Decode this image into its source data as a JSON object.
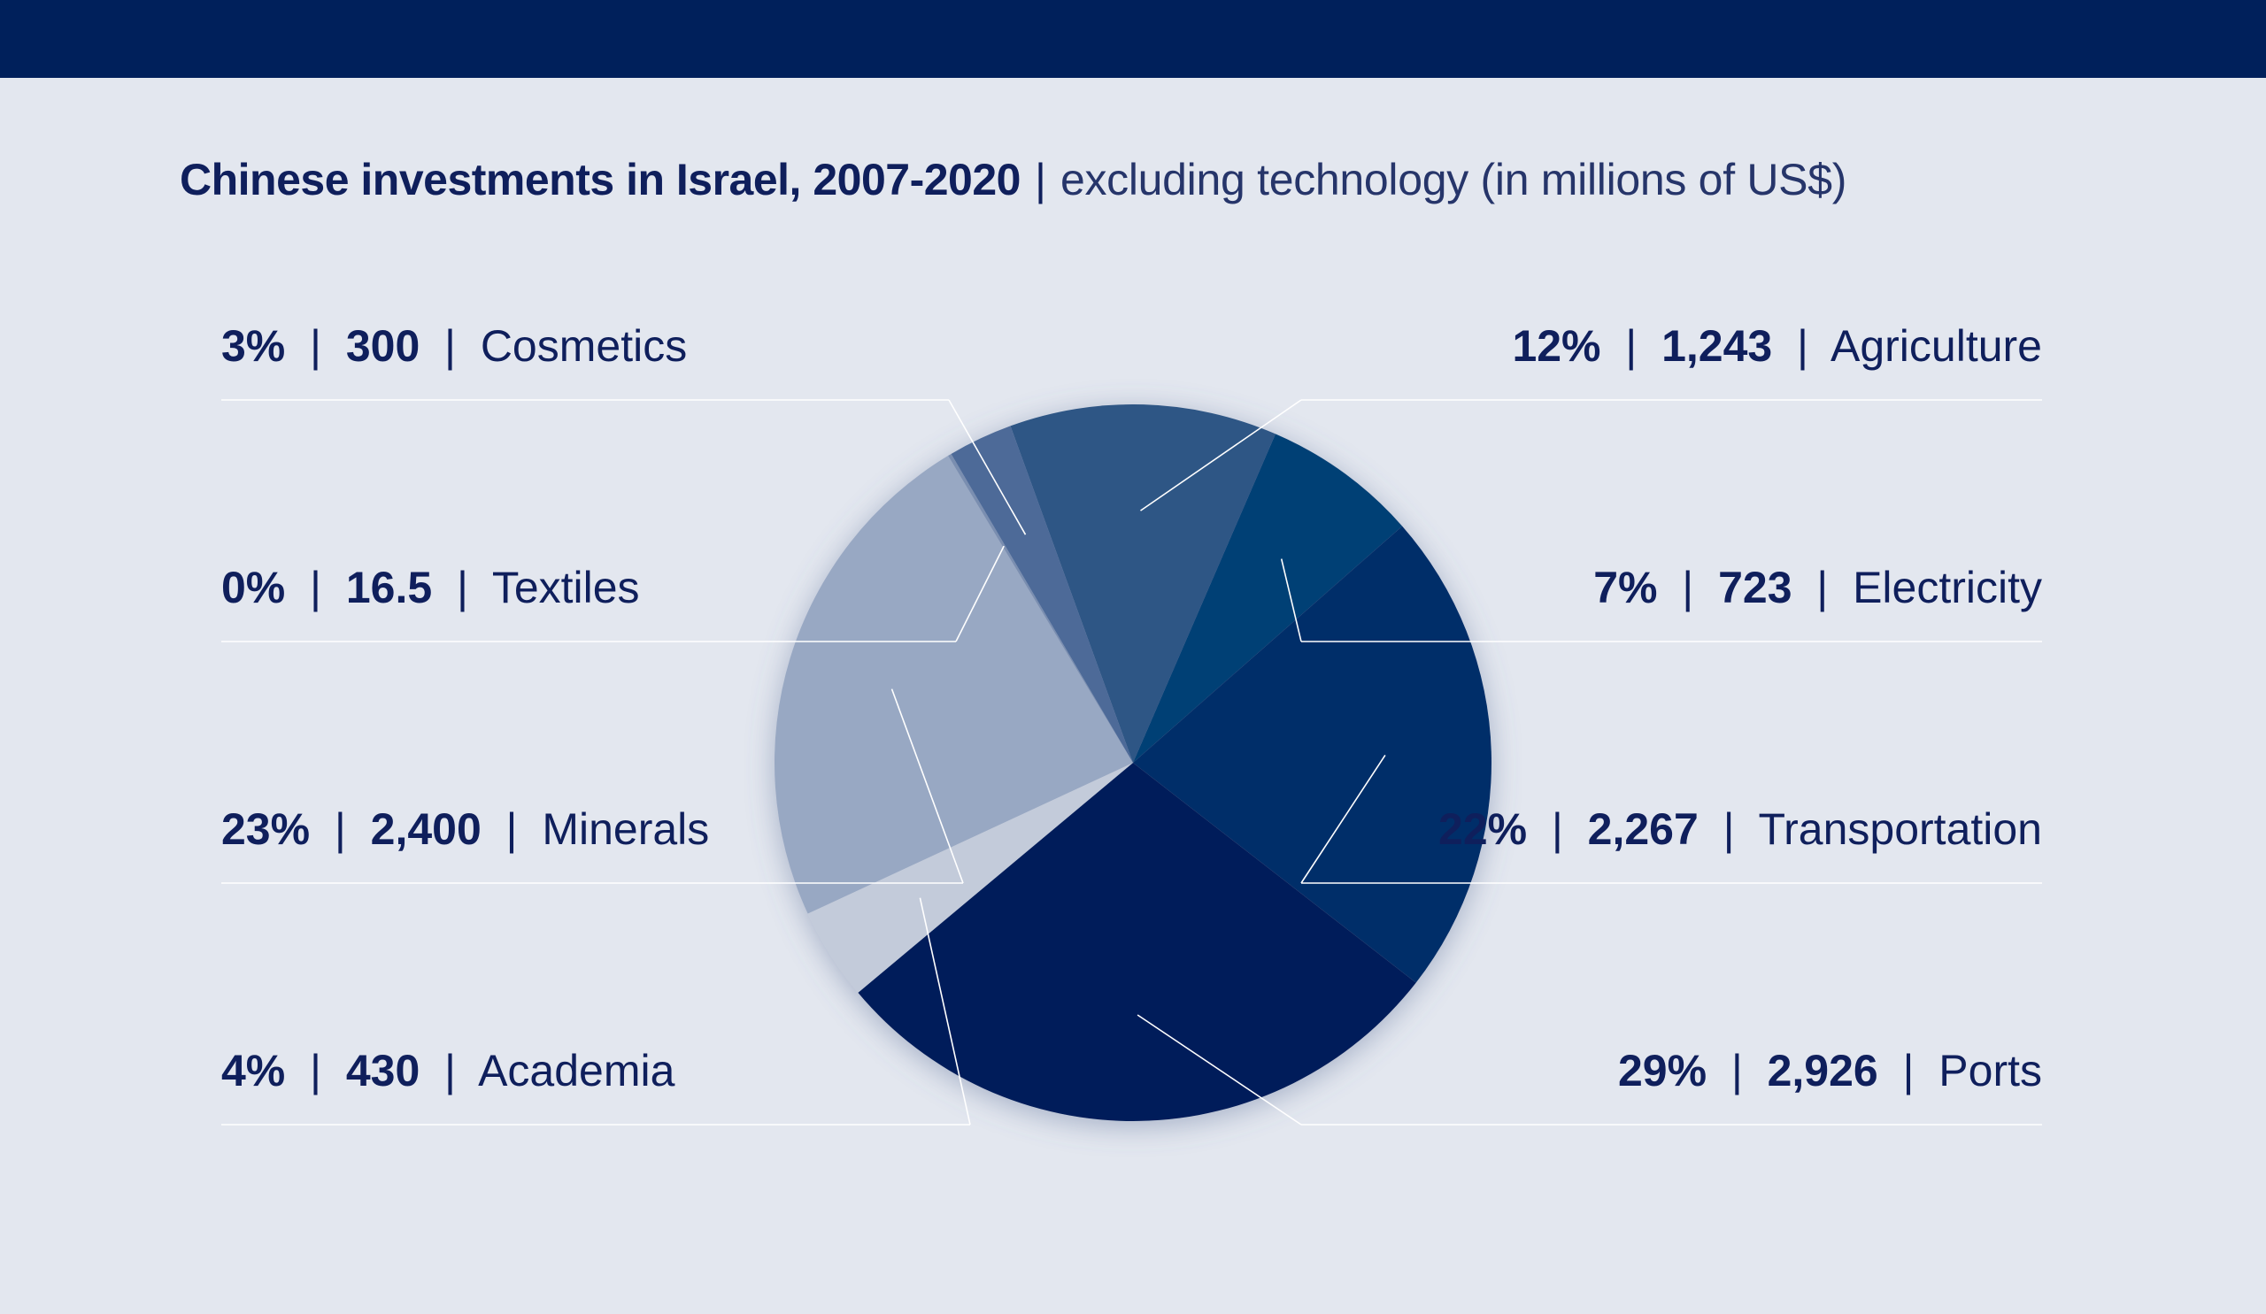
{
  "title": {
    "main": "Chinese investments in Israel, 2007-2020",
    "separator": "|",
    "subtitle": "excluding technology (in millions of US$)"
  },
  "colors": {
    "top_band": "#00205b",
    "background": "#e3e7ef",
    "text": "#0f1f5c",
    "leader_line": "#ffffff"
  },
  "chart_data": {
    "type": "pie",
    "title": "Chinese investments in Israel, 2007-2020",
    "subtitle": "excluding technology (in millions of US$)",
    "legend": "none",
    "label_separator": "|",
    "slices": [
      {
        "name": "Agriculture",
        "value": 1243,
        "value_label": "1,243",
        "percent_label": "12%",
        "color": "#2d5685",
        "label_side": "right"
      },
      {
        "name": "Electricity",
        "value": 723,
        "value_label": "723",
        "percent_label": "7%",
        "color": "#003f74",
        "label_side": "right"
      },
      {
        "name": "Transportation",
        "value": 2267,
        "value_label": "2,267",
        "percent_label": "22%",
        "color": "#002f69",
        "label_side": "right"
      },
      {
        "name": "Ports",
        "value": 2926,
        "value_label": "2,926",
        "percent_label": "29%",
        "color": "#001e5a",
        "label_side": "right"
      },
      {
        "name": "Academia",
        "value": 430,
        "value_label": "430",
        "percent_label": "4%",
        "color": "#c3cbda",
        "label_side": "left"
      },
      {
        "name": "Minerals",
        "value": 2400,
        "value_label": "2,400",
        "percent_label": "23%",
        "color": "#98a8c3",
        "label_side": "left"
      },
      {
        "name": "Textiles",
        "value": 16.5,
        "value_label": "16.5",
        "percent_label": "0%",
        "color": "#7a8eb0",
        "label_side": "left"
      },
      {
        "name": "Cosmetics",
        "value": 300,
        "value_label": "300",
        "percent_label": "3%",
        "color": "#4e6b98",
        "label_side": "left"
      }
    ]
  }
}
